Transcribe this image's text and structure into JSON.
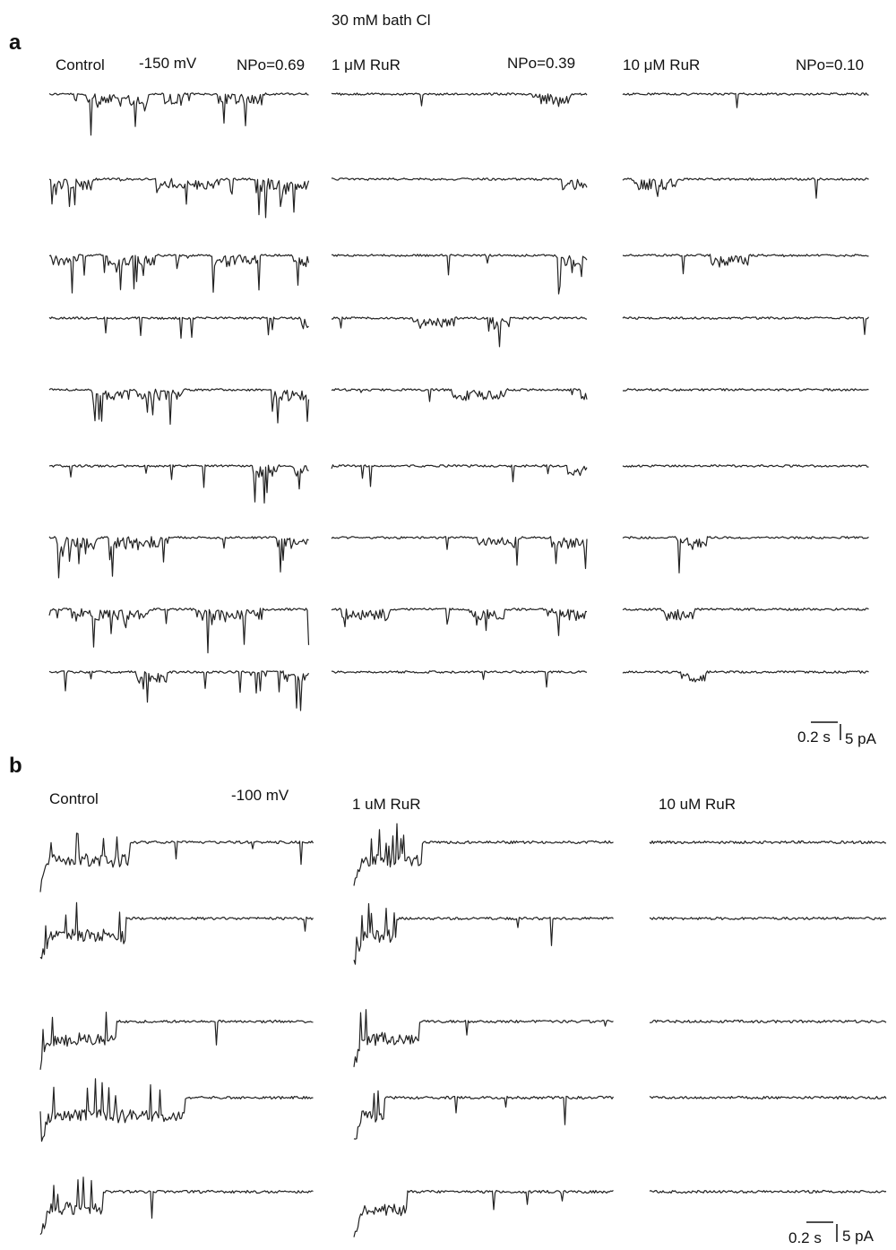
{
  "figure": {
    "title": "30 mM bath Cl",
    "panels": [
      {
        "label": "a",
        "columns": [
          {
            "condition": "Control",
            "voltage": "-150 mV",
            "npo": "NPo=0.69"
          },
          {
            "condition": "1 μM RuR",
            "npo": "NPo=0.39"
          },
          {
            "condition": "10 μM RuR",
            "npo": "NPo=0.10"
          }
        ],
        "scale_bar": {
          "time": "0.2 s",
          "current": "5 pA"
        }
      },
      {
        "label": "b",
        "columns": [
          {
            "condition": "Control",
            "voltage": "-100 mV"
          },
          {
            "condition": "1 uM RuR"
          },
          {
            "condition": "10 uM RuR"
          }
        ],
        "scale_bar": {
          "time": "0.2 s",
          "current": "5 pA"
        }
      }
    ]
  }
}
